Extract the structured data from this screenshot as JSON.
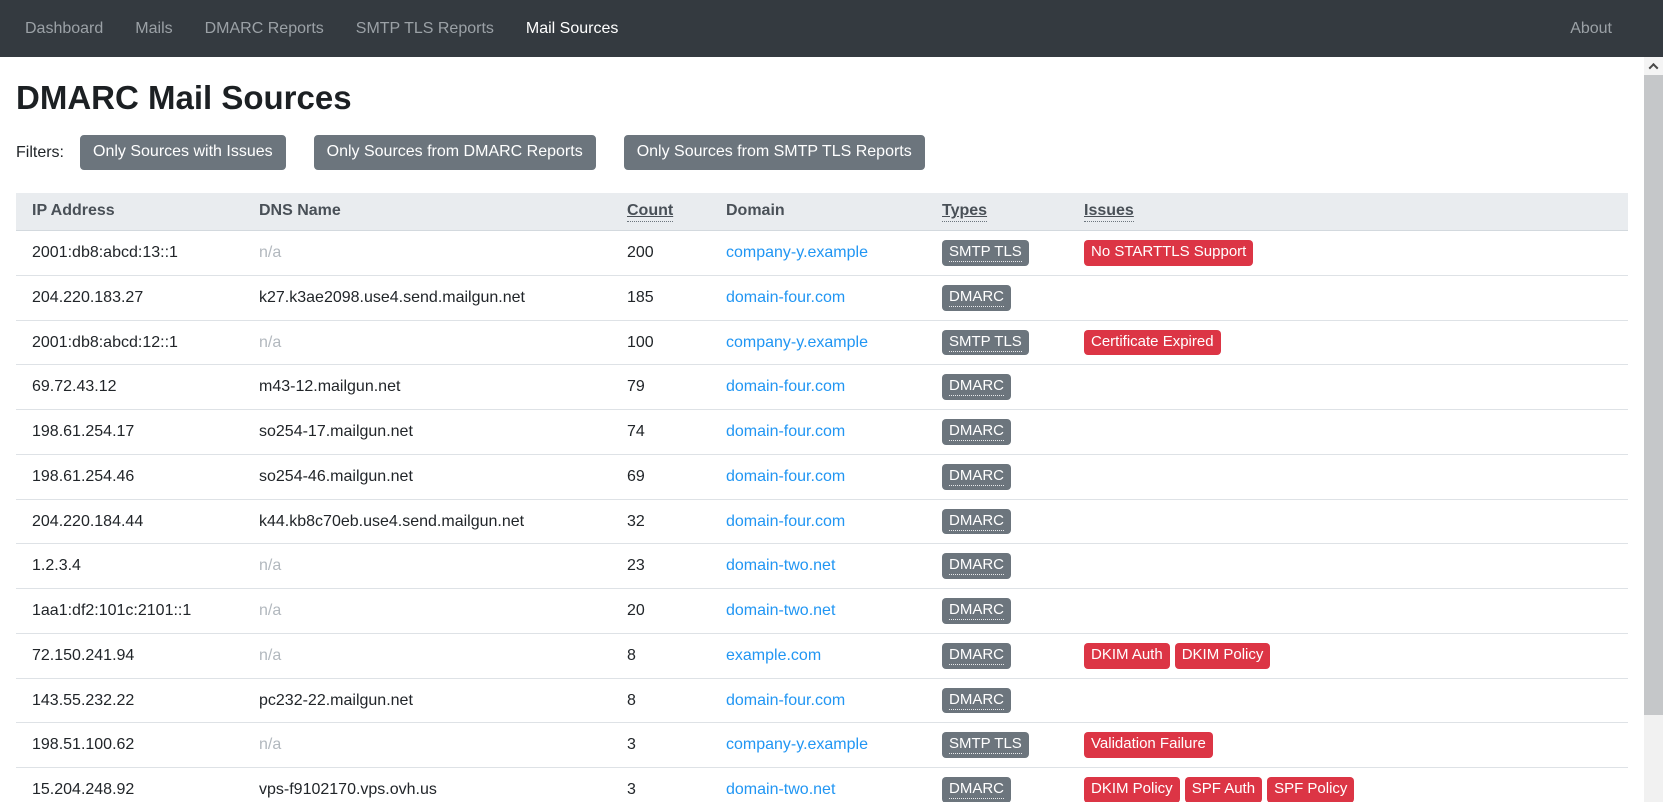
{
  "navbar": {
    "items": [
      {
        "label": "Dashboard",
        "active": false
      },
      {
        "label": "Mails",
        "active": false
      },
      {
        "label": "DMARC Reports",
        "active": false
      },
      {
        "label": "SMTP TLS Reports",
        "active": false
      },
      {
        "label": "Mail Sources",
        "active": true
      }
    ],
    "about_label": "About"
  },
  "page": {
    "title": "DMARC Mail Sources"
  },
  "filters": {
    "label": "Filters:",
    "buttons": [
      "Only Sources with Issues",
      "Only Sources from DMARC Reports",
      "Only Sources from SMTP TLS Reports"
    ]
  },
  "table": {
    "columns": [
      {
        "label": "IP Address",
        "sortable": false
      },
      {
        "label": "DNS Name",
        "sortable": false
      },
      {
        "label": "Count",
        "sortable": true
      },
      {
        "label": "Domain",
        "sortable": false
      },
      {
        "label": "Types",
        "sortable": true
      },
      {
        "label": "Issues",
        "sortable": true
      }
    ],
    "rows": [
      {
        "ip": "2001:db8:abcd:13::1",
        "dns": "n/a",
        "dns_is_na": true,
        "count": "200",
        "domain": "company-y.example",
        "types": [
          "SMTP TLS"
        ],
        "issues": [
          "No STARTTLS Support"
        ]
      },
      {
        "ip": "204.220.183.27",
        "dns": "k27.k3ae2098.use4.send.mailgun.net",
        "dns_is_na": false,
        "count": "185",
        "domain": "domain-four.com",
        "types": [
          "DMARC"
        ],
        "issues": []
      },
      {
        "ip": "2001:db8:abcd:12::1",
        "dns": "n/a",
        "dns_is_na": true,
        "count": "100",
        "domain": "company-y.example",
        "types": [
          "SMTP TLS"
        ],
        "issues": [
          "Certificate Expired"
        ]
      },
      {
        "ip": "69.72.43.12",
        "dns": "m43-12.mailgun.net",
        "dns_is_na": false,
        "count": "79",
        "domain": "domain-four.com",
        "types": [
          "DMARC"
        ],
        "issues": []
      },
      {
        "ip": "198.61.254.17",
        "dns": "so254-17.mailgun.net",
        "dns_is_na": false,
        "count": "74",
        "domain": "domain-four.com",
        "types": [
          "DMARC"
        ],
        "issues": []
      },
      {
        "ip": "198.61.254.46",
        "dns": "so254-46.mailgun.net",
        "dns_is_na": false,
        "count": "69",
        "domain": "domain-four.com",
        "types": [
          "DMARC"
        ],
        "issues": []
      },
      {
        "ip": "204.220.184.44",
        "dns": "k44.kb8c70eb.use4.send.mailgun.net",
        "dns_is_na": false,
        "count": "32",
        "domain": "domain-four.com",
        "types": [
          "DMARC"
        ],
        "issues": []
      },
      {
        "ip": "1.2.3.4",
        "dns": "n/a",
        "dns_is_na": true,
        "count": "23",
        "domain": "domain-two.net",
        "types": [
          "DMARC"
        ],
        "issues": []
      },
      {
        "ip": "1aa1:df2:101c:2101::1",
        "dns": "n/a",
        "dns_is_na": true,
        "count": "20",
        "domain": "domain-two.net",
        "types": [
          "DMARC"
        ],
        "issues": []
      },
      {
        "ip": "72.150.241.94",
        "dns": "n/a",
        "dns_is_na": true,
        "count": "8",
        "domain": "example.com",
        "types": [
          "DMARC"
        ],
        "issues": [
          "DKIM Auth",
          "DKIM Policy"
        ]
      },
      {
        "ip": "143.55.232.22",
        "dns": "pc232-22.mailgun.net",
        "dns_is_na": false,
        "count": "8",
        "domain": "domain-four.com",
        "types": [
          "DMARC"
        ],
        "issues": []
      },
      {
        "ip": "198.51.100.62",
        "dns": "n/a",
        "dns_is_na": true,
        "count": "3",
        "domain": "company-y.example",
        "types": [
          "SMTP TLS"
        ],
        "issues": [
          "Validation Failure"
        ]
      },
      {
        "ip": "15.204.248.92",
        "dns": "vps-f9102170.vps.ovh.us",
        "dns_is_na": false,
        "count": "3",
        "domain": "domain-two.net",
        "types": [
          "DMARC"
        ],
        "issues": [
          "DKIM Policy",
          "SPF Auth",
          "SPF Policy"
        ]
      }
    ]
  },
  "colors": {
    "navbar_bg": "#343a40",
    "nav_inactive": "#9ba1a6",
    "nav_active": "#ffffff",
    "button_gray": "#6c757d",
    "badge_gray": "#6c757d",
    "badge_red": "#dc3545",
    "link_blue": "#2196f3",
    "table_header_bg": "#e9ecef",
    "row_border": "#dee2e6"
  }
}
